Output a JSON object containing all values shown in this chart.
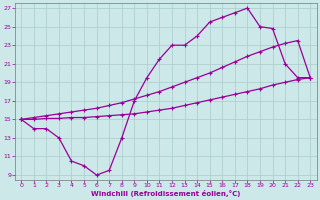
{
  "xlabel": "Windchill (Refroidissement éolien,°C)",
  "background_color": "#cce8e8",
  "grid_color": "#aacccc",
  "line_color": "#990099",
  "xlim": [
    -0.5,
    23.5
  ],
  "ylim": [
    8.5,
    27.5
  ],
  "xticks": [
    0,
    1,
    2,
    3,
    4,
    5,
    6,
    7,
    8,
    9,
    10,
    11,
    12,
    13,
    14,
    15,
    16,
    17,
    18,
    19,
    20,
    21,
    22,
    23
  ],
  "yticks": [
    9,
    11,
    13,
    15,
    17,
    19,
    21,
    23,
    25,
    27
  ],
  "line1_x": [
    0,
    1,
    2,
    3,
    4,
    5,
    6,
    7,
    8,
    9,
    10,
    11,
    12,
    13,
    14,
    15,
    16,
    17,
    18,
    19,
    20,
    21,
    22,
    23
  ],
  "line1_y": [
    15,
    14,
    14,
    13,
    10.5,
    10,
    9,
    9.5,
    13,
    17,
    19.5,
    21.5,
    23,
    23,
    24,
    25.5,
    26,
    26.5,
    27,
    25,
    24.8,
    21,
    19.5,
    19.5
  ],
  "line2_x": [
    0,
    1,
    2,
    3,
    4,
    5,
    6,
    7,
    8,
    9,
    10,
    11,
    12,
    13,
    14,
    15,
    16,
    17,
    18,
    19,
    20,
    21,
    22,
    23
  ],
  "line2_y": [
    15,
    15.0,
    15.1,
    15.1,
    15.2,
    15.2,
    15.3,
    15.4,
    15.5,
    15.6,
    15.8,
    16.0,
    16.2,
    16.5,
    16.8,
    17.1,
    17.4,
    17.7,
    18.0,
    18.3,
    18.7,
    19.0,
    19.3,
    19.5
  ],
  "line3_x": [
    0,
    1,
    2,
    3,
    4,
    5,
    6,
    7,
    8,
    9,
    10,
    11,
    12,
    13,
    14,
    15,
    16,
    17,
    18,
    19,
    20,
    21,
    22,
    23
  ],
  "line3_y": [
    15,
    15.2,
    15.4,
    15.6,
    15.8,
    16.0,
    16.2,
    16.5,
    16.8,
    17.2,
    17.6,
    18.0,
    18.5,
    19.0,
    19.5,
    20.0,
    20.6,
    21.2,
    21.8,
    22.3,
    22.8,
    23.2,
    23.5,
    19.5
  ]
}
